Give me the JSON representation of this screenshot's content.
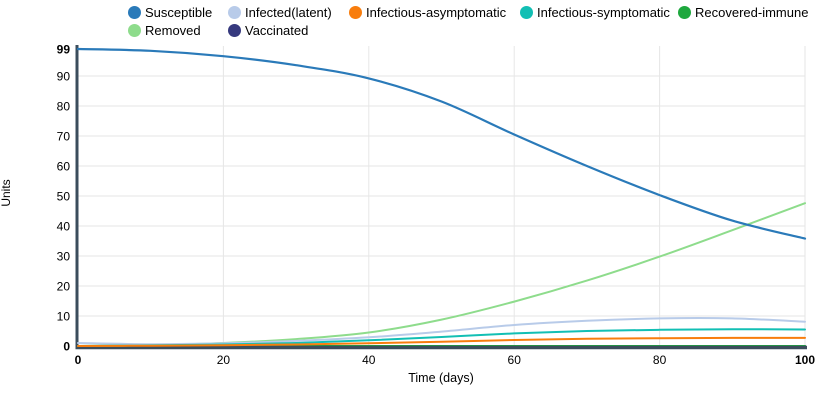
{
  "chart_data": {
    "type": "line",
    "title": "",
    "xlabel": "Time (days)",
    "ylabel": "Units",
    "xlim": [
      0,
      100
    ],
    "ylim": [
      0,
      99
    ],
    "x_ticks": [
      0,
      20,
      40,
      60,
      80,
      100
    ],
    "y_ticks": [
      0,
      10,
      20,
      30,
      40,
      50,
      60,
      70,
      80,
      90,
      99
    ],
    "grid": true,
    "legend_position": "top",
    "axis_color": "#3b4d5c",
    "grid_color": "#e6e6e6",
    "x": [
      0,
      10,
      20,
      30,
      40,
      50,
      60,
      70,
      80,
      90,
      100
    ],
    "series": [
      {
        "name": "Susceptible",
        "color": "#2a7ab9",
        "values": [
          99,
          98.4,
          96.6,
          93.6,
          89.2,
          81.5,
          70.5,
          60.0,
          50.3,
          41.8,
          35.8
        ]
      },
      {
        "name": "Infected(latent)",
        "color": "#b8cbe9",
        "values": [
          1,
          0.6,
          0.9,
          1.7,
          2.9,
          4.8,
          7.0,
          8.4,
          9.2,
          9.2,
          8.1
        ]
      },
      {
        "name": "Infectious-asymptomatic",
        "color": "#f87d0d",
        "values": [
          0,
          0.1,
          0.25,
          0.5,
          0.9,
          1.4,
          2.0,
          2.4,
          2.6,
          2.7,
          2.7
        ]
      },
      {
        "name": "Infectious-symptomatic",
        "color": "#12bfb4",
        "values": [
          0,
          0.2,
          0.5,
          1.0,
          1.9,
          3.0,
          4.2,
          5.0,
          5.4,
          5.6,
          5.5
        ]
      },
      {
        "name": "Recovered-immune",
        "color": "#1ea83e",
        "values": [
          0,
          0,
          0,
          0,
          0,
          0,
          0,
          0,
          0,
          0,
          0
        ]
      },
      {
        "name": "Removed",
        "color": "#8edc8c",
        "values": [
          0,
          0.3,
          1.0,
          2.3,
          4.5,
          8.8,
          14.8,
          21.8,
          29.8,
          38.6,
          47.6
        ]
      },
      {
        "name": "Vaccinated",
        "color": "#36397e",
        "values": [
          0,
          0,
          0,
          0,
          0,
          0,
          0,
          0,
          0,
          0,
          0
        ]
      }
    ]
  }
}
